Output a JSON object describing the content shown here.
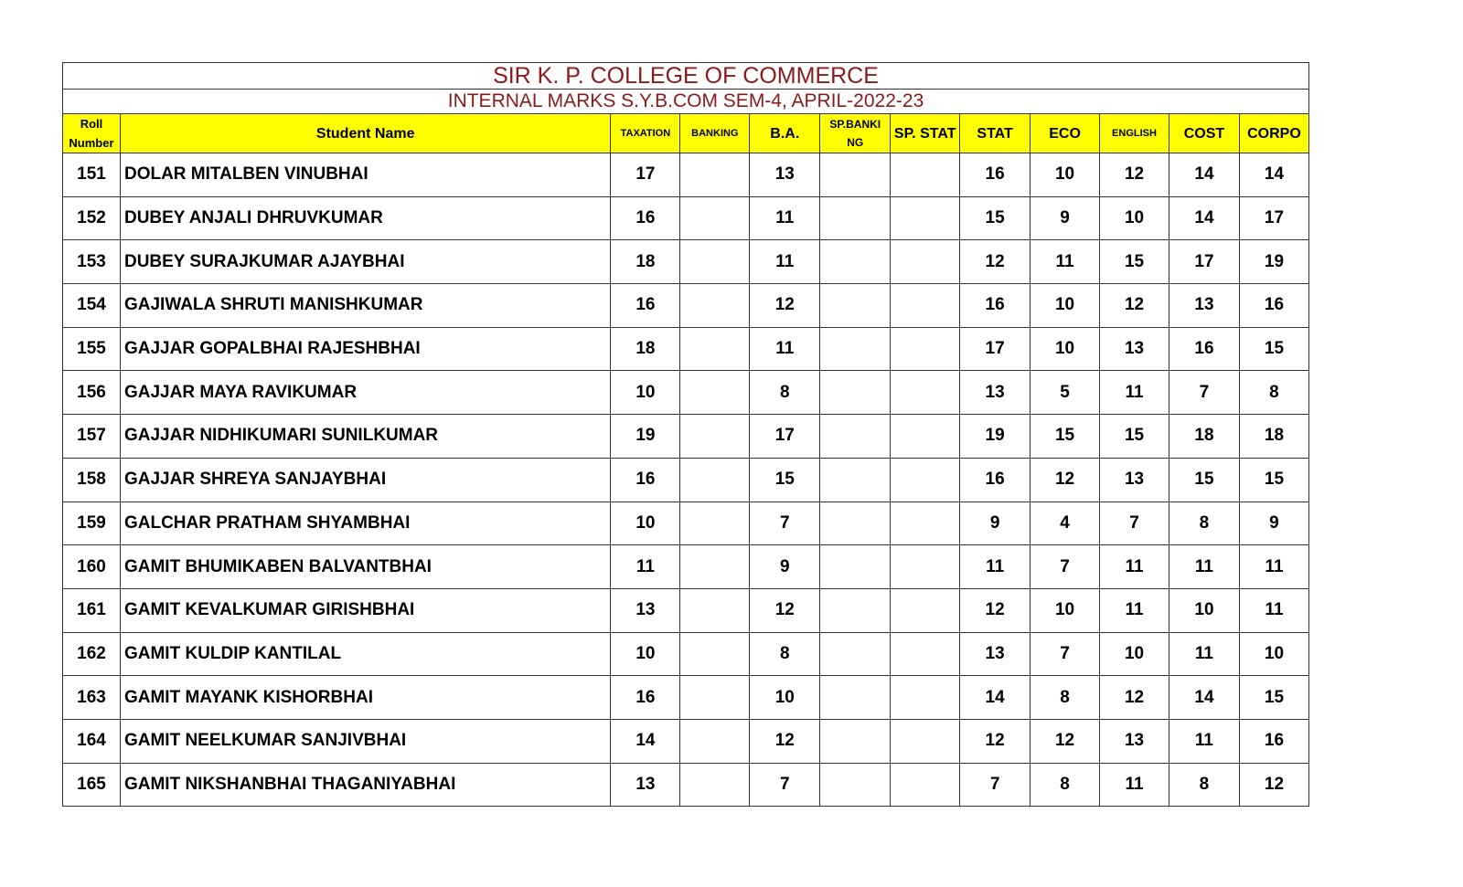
{
  "title": "SIR K. P. COLLEGE OF COMMERCE",
  "subtitle": "INTERNAL MARKS  S.Y.B.COM SEM-4, APRIL-2022-23",
  "columns": [
    "Roll Number",
    "Student Name",
    "TAXATION",
    "BANKING",
    "B.A.",
    "SP.BANKI NG",
    "SP. STAT",
    "STAT",
    "ECO",
    "ENGLISH",
    "COST",
    "CORPO"
  ],
  "rows": [
    [
      "151",
      "DOLAR MITALBEN VINUBHAI",
      "17",
      "",
      "13",
      "",
      "",
      "16",
      "10",
      "12",
      "14",
      "14"
    ],
    [
      "152",
      "DUBEY ANJALI DHRUVKUMAR",
      "16",
      "",
      "11",
      "",
      "",
      "15",
      "9",
      "10",
      "14",
      "17"
    ],
    [
      "153",
      "DUBEY SURAJKUMAR AJAYBHAI",
      "18",
      "",
      "11",
      "",
      "",
      "12",
      "11",
      "15",
      "17",
      "19"
    ],
    [
      "154",
      "GAJIWALA SHRUTI MANISHKUMAR",
      "16",
      "",
      "12",
      "",
      "",
      "16",
      "10",
      "12",
      "13",
      "16"
    ],
    [
      "155",
      "GAJJAR GOPALBHAI RAJESHBHAI",
      "18",
      "",
      "11",
      "",
      "",
      "17",
      "10",
      "13",
      "16",
      "15"
    ],
    [
      "156",
      "GAJJAR MAYA RAVIKUMAR",
      "10",
      "",
      "8",
      "",
      "",
      "13",
      "5",
      "11",
      "7",
      "8"
    ],
    [
      "157",
      "GAJJAR NIDHIKUMARI SUNILKUMAR",
      "19",
      "",
      "17",
      "",
      "",
      "19",
      "15",
      "15",
      "18",
      "18"
    ],
    [
      "158",
      "GAJJAR SHREYA SANJAYBHAI",
      "16",
      "",
      "15",
      "",
      "",
      "16",
      "12",
      "13",
      "15",
      "15"
    ],
    [
      "159",
      "GALCHAR PRATHAM SHYAMBHAI",
      "10",
      "",
      "7",
      "",
      "",
      "9",
      "4",
      "7",
      "8",
      "9"
    ],
    [
      "160",
      "GAMIT BHUMIKABEN BALVANTBHAI",
      "11",
      "",
      "9",
      "",
      "",
      "11",
      "7",
      "11",
      "11",
      "11"
    ],
    [
      "161",
      "GAMIT KEVALKUMAR GIRISHBHAI",
      "13",
      "",
      "12",
      "",
      "",
      "12",
      "10",
      "11",
      "10",
      "11"
    ],
    [
      "162",
      "GAMIT KULDIP KANTILAL",
      "10",
      "",
      "8",
      "",
      "",
      "13",
      "7",
      "10",
      "11",
      "10"
    ],
    [
      "163",
      "GAMIT MAYANK KISHORBHAI",
      "16",
      "",
      "10",
      "",
      "",
      "14",
      "8",
      "12",
      "14",
      "15"
    ],
    [
      "164",
      "GAMIT NEELKUMAR SANJIVBHAI",
      "14",
      "",
      "12",
      "",
      "",
      "12",
      "12",
      "13",
      "11",
      "16"
    ],
    [
      "165",
      "GAMIT NIKSHANBHAI THAGANIYABHAI",
      "13",
      "",
      "7",
      "",
      "",
      "7",
      "8",
      "11",
      "8",
      "12"
    ]
  ]
}
